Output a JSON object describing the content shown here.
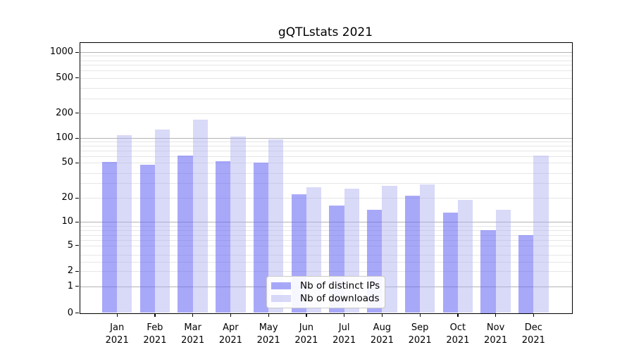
{
  "chart_data": {
    "type": "bar",
    "title": "gQTLstats 2021",
    "categories": [
      "Jan 2021",
      "Feb 2021",
      "Mar 2021",
      "Apr 2021",
      "May 2021",
      "Jun 2021",
      "Jul 2021",
      "Aug 2021",
      "Sep 2021",
      "Oct 2021",
      "Nov 2021",
      "Dec 2021"
    ],
    "series": [
      {
        "name": "Nb of distinct IPs",
        "color": "rgba(100,100,245,0.56)",
        "values": [
          51,
          48,
          61,
          52,
          50,
          22,
          16,
          14,
          21,
          13,
          8,
          7
        ]
      },
      {
        "name": "Nb of downloads",
        "color": "rgba(170,170,240,0.45)",
        "values": [
          108,
          126,
          165,
          104,
          97,
          27,
          26,
          28,
          29,
          19,
          14,
          61
        ]
      }
    ],
    "xlabel": "",
    "ylabel": "",
    "y_ticks": [
      0,
      1,
      2,
      5,
      10,
      20,
      50,
      100,
      200,
      500,
      1000
    ],
    "y_scale": "log-like with zero baseline",
    "ylim": [
      0,
      1300
    ],
    "grid": "horizontal, dark lines at powers of 10, light minor lines",
    "legend_position": "inside lower-center"
  },
  "colors": {
    "bar_distinct_ips_on_white": "#a8a8f8",
    "bar_downloads_on_white": "#d9d9f8",
    "grid_major": "#b3b3b3",
    "grid_minor": "#e6e6e6",
    "axis": "#000000",
    "legend_border": "#c9c9c9",
    "background": "#ffffff"
  }
}
